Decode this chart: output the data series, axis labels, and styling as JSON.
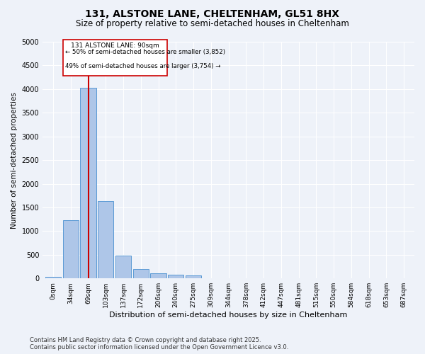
{
  "title1": "131, ALSTONE LANE, CHELTENHAM, GL51 8HX",
  "title2": "Size of property relative to semi-detached houses in Cheltenham",
  "xlabel": "Distribution of semi-detached houses by size in Cheltenham",
  "ylabel": "Number of semi-detached properties",
  "categories": [
    "0sqm",
    "34sqm",
    "69sqm",
    "103sqm",
    "137sqm",
    "172sqm",
    "206sqm",
    "240sqm",
    "275sqm",
    "309sqm",
    "344sqm",
    "378sqm",
    "412sqm",
    "447sqm",
    "481sqm",
    "515sqm",
    "550sqm",
    "584sqm",
    "618sqm",
    "653sqm",
    "687sqm"
  ],
  "values": [
    30,
    1230,
    4030,
    1640,
    480,
    200,
    115,
    80,
    60,
    0,
    0,
    0,
    0,
    0,
    0,
    0,
    0,
    0,
    0,
    0,
    0
  ],
  "bar_color": "#aec6e8",
  "bar_edge_color": "#5b9bd5",
  "vline_x": 2,
  "vline_color": "#cc0000",
  "annotation_title": "131 ALSTONE LANE: 90sqm",
  "annotation_line1": "← 50% of semi-detached houses are smaller (3,852)",
  "annotation_line2": "49% of semi-detached houses are larger (3,754) →",
  "annotation_box_color": "#cc0000",
  "ylim": [
    0,
    5000
  ],
  "yticks": [
    0,
    500,
    1000,
    1500,
    2000,
    2500,
    3000,
    3500,
    4000,
    4500,
    5000
  ],
  "footer1": "Contains HM Land Registry data © Crown copyright and database right 2025.",
  "footer2": "Contains public sector information licensed under the Open Government Licence v3.0.",
  "bg_color": "#eef2f9",
  "grid_color": "#ffffff",
  "title1_fontsize": 10,
  "title2_fontsize": 8.5,
  "tick_fontsize": 6.5,
  "xlabel_fontsize": 8,
  "ylabel_fontsize": 7.5,
  "footer_fontsize": 6
}
